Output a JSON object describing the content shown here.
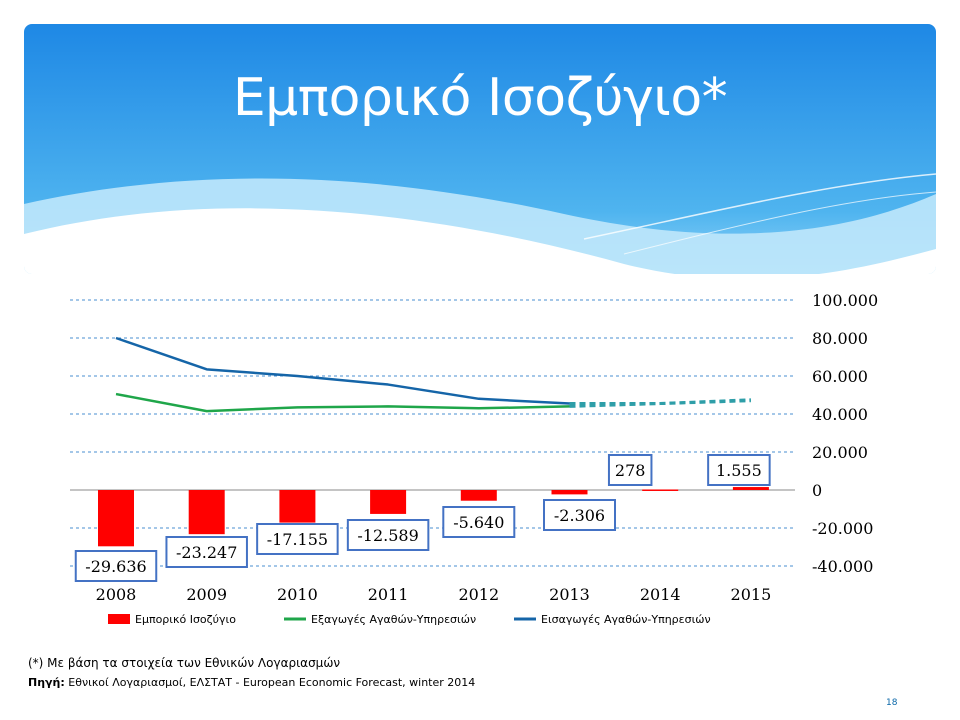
{
  "slide": {
    "title": "Εμπορικό Ισοζύγιο*",
    "footnote": "(*) Με βάση τα στοιχεία των Εθνικών Λογαριασμών",
    "source_label": "Πηγή:",
    "source_text": "Εθνικοί Λογαριασμοί, ΕΛΣΤΑΤ - European Economic Forecast, winter 2014",
    "page_number": "18"
  },
  "colors": {
    "bar": "#ff0000",
    "exports": "#1fa64a",
    "imports": "#1565a8",
    "forecast": "#2e9ea8",
    "label_border": "#4472c4",
    "banner_top": "#1e88e5",
    "banner_bottom": "#8fd3f7"
  },
  "chart_data": {
    "type": "bar",
    "categories": [
      "2008",
      "2009",
      "2010",
      "2011",
      "2012",
      "2013",
      "2014",
      "2015"
    ],
    "ylim": [
      -40000,
      100000
    ],
    "yticks": [
      "100.000",
      "80.000",
      "60.000",
      "40.000",
      "20.000",
      "0",
      "-20.000",
      "-40.000"
    ],
    "ytick_values": [
      100000,
      80000,
      60000,
      40000,
      20000,
      0,
      -20000,
      -40000
    ],
    "grid": true,
    "legend_position": "bottom",
    "series": [
      {
        "name": "Εμπορικό Ισοζύγιο",
        "kind": "bar",
        "values": [
          -29636,
          -23247,
          -17155,
          -12589,
          -5640,
          -2306,
          278,
          1555
        ],
        "labels": [
          "-29.636",
          "-23.247",
          "-17.155",
          "-12.589",
          "-5.640",
          "-2.306",
          "278",
          "1.555"
        ]
      },
      {
        "name": "Εξαγωγές Αγαθών-Υπηρεσιών",
        "kind": "line",
        "values": [
          50500,
          41500,
          43500,
          44000,
          43000,
          44000,
          45500,
          47000
        ],
        "forecast_from_index": 5
      },
      {
        "name": "Εισαγωγές Αγαθών-Υπηρεσιών",
        "kind": "line",
        "values": [
          80000,
          63500,
          60000,
          55500,
          48000,
          45500,
          45500,
          47500
        ],
        "forecast_from_index": 5
      }
    ]
  }
}
